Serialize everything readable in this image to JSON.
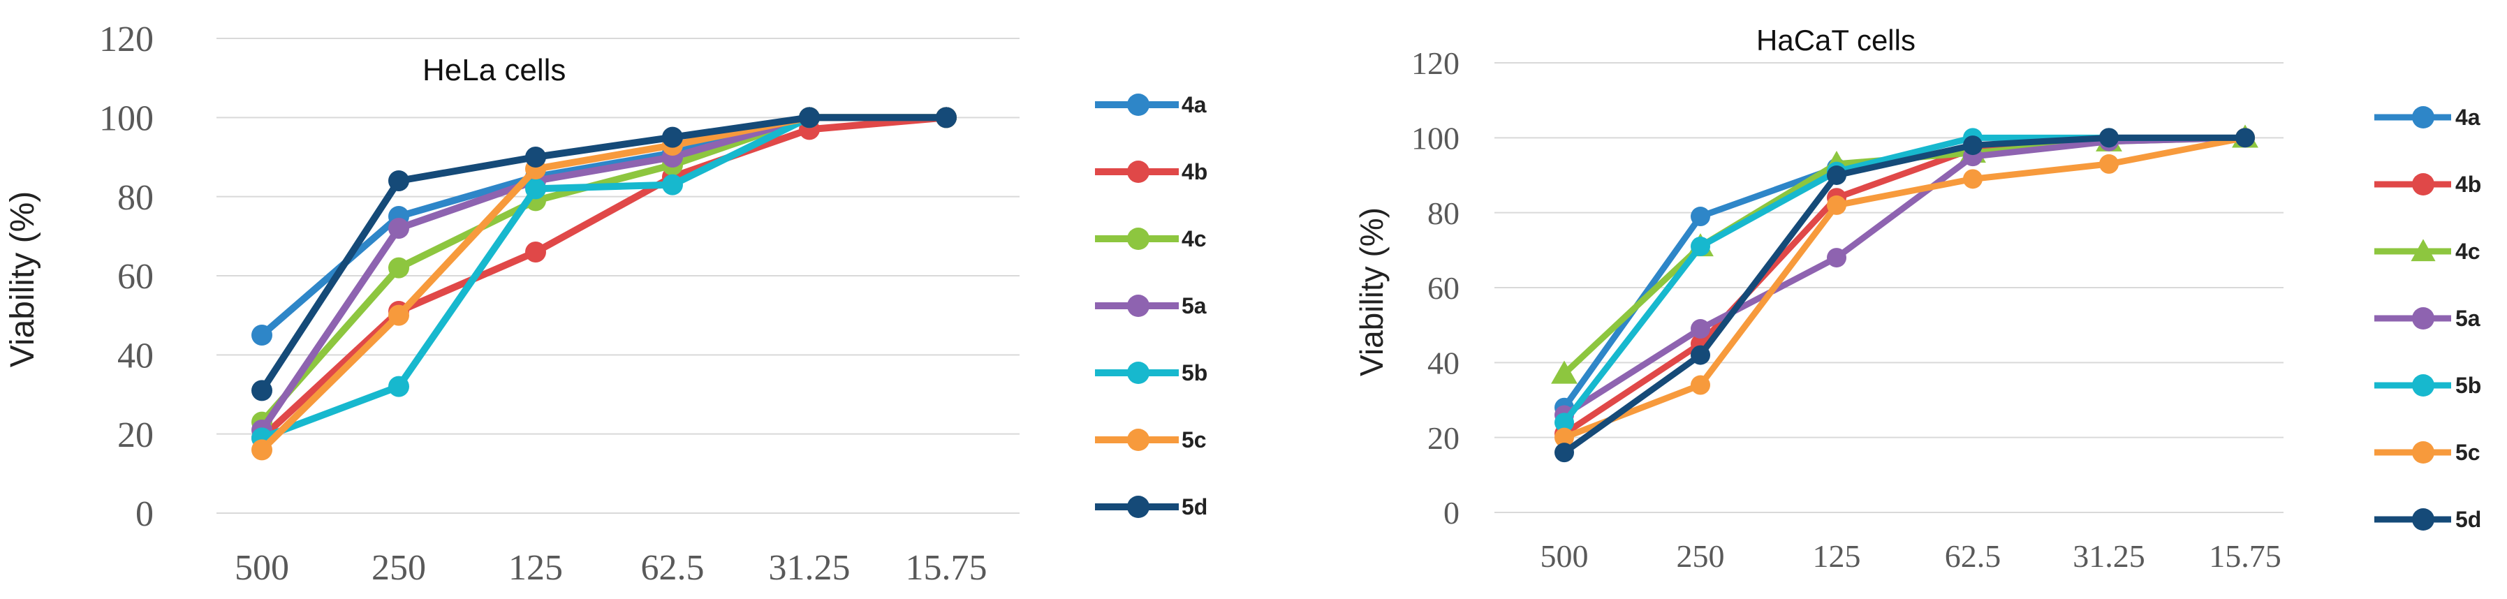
{
  "chart_data": [
    {
      "type": "line",
      "title": "HeLa cells",
      "ylabel": "Viability (%)",
      "xlabel": "",
      "ylim": [
        0,
        120
      ],
      "yticks": [
        "0",
        "20",
        "40",
        "60",
        "80",
        "100",
        "120"
      ],
      "categories": [
        "500",
        "250",
        "125",
        "62.5",
        "31.25",
        "15.75"
      ],
      "grid": true,
      "legend_position": "right",
      "series": [
        {
          "name": "4a",
          "color": "#2E86C8",
          "marker": "circle",
          "values": [
            45,
            75,
            85,
            91,
            100,
            100
          ]
        },
        {
          "name": "4b",
          "color": "#E04848",
          "marker": "circle",
          "values": [
            19,
            51,
            66,
            85,
            97,
            100
          ]
        },
        {
          "name": "4c",
          "color": "#8DC63F",
          "marker": "circle",
          "values": [
            23,
            62,
            79,
            88,
            100,
            100
          ]
        },
        {
          "name": "5a",
          "color": "#8E63B0",
          "marker": "circle",
          "values": [
            21,
            72,
            84,
            90,
            100,
            100
          ]
        },
        {
          "name": "5b",
          "color": "#17B8CE",
          "marker": "circle",
          "values": [
            19,
            32,
            82,
            83,
            100,
            100
          ]
        },
        {
          "name": "5c",
          "color": "#F79A3C",
          "marker": "circle",
          "values": [
            16,
            50,
            87,
            93,
            100,
            100
          ]
        },
        {
          "name": "5d",
          "color": "#154A78",
          "marker": "circle",
          "values": [
            31,
            84,
            90,
            95,
            100,
            100
          ]
        }
      ]
    },
    {
      "type": "line",
      "title": "HaCaT cells",
      "ylabel": "Viability (%)",
      "xlabel": "",
      "ylim": [
        0,
        120
      ],
      "yticks": [
        "0",
        "20",
        "40",
        "60",
        "80",
        "100",
        "120"
      ],
      "categories": [
        "500",
        "250",
        "125",
        "62.5",
        "31.25",
        "15.75"
      ],
      "grid": true,
      "legend_position": "right",
      "series": [
        {
          "name": "4a",
          "color": "#2E86C8",
          "marker": "circle",
          "values": [
            28,
            79,
            92,
            97,
            100,
            100
          ]
        },
        {
          "name": "4b",
          "color": "#E04848",
          "marker": "circle",
          "values": [
            21,
            45,
            84,
            97,
            100,
            100
          ]
        },
        {
          "name": "4c",
          "color": "#8DC63F",
          "marker": "triangle",
          "values": [
            37,
            71,
            93,
            96,
            99,
            100
          ]
        },
        {
          "name": "5a",
          "color": "#8E63B0",
          "marker": "circle",
          "values": [
            26,
            49,
            68,
            95,
            99,
            100
          ]
        },
        {
          "name": "5b",
          "color": "#17B8CE",
          "marker": "circle",
          "values": [
            24,
            71,
            91,
            100,
            100,
            100
          ]
        },
        {
          "name": "5c",
          "color": "#F79A3C",
          "marker": "circle",
          "values": [
            20,
            34,
            82,
            89,
            93,
            100
          ]
        },
        {
          "name": "5d",
          "color": "#154A78",
          "marker": "circle",
          "values": [
            16,
            42,
            90,
            98,
            100,
            100
          ]
        }
      ]
    }
  ]
}
